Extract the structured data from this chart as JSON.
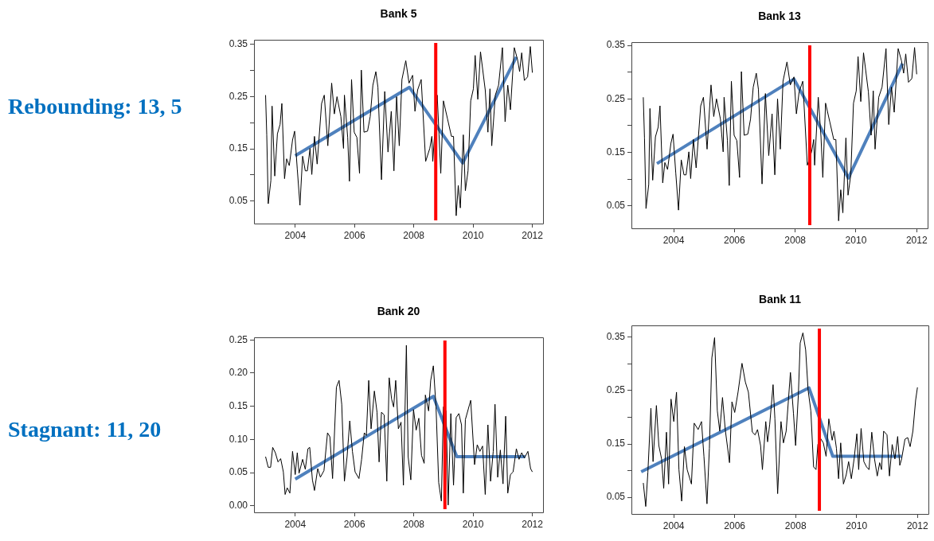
{
  "chart_data": [
    {
      "type": "line",
      "title": "Bank 5",
      "annotations": [
        "Rebounding: 13, 5"
      ],
      "xlim": [
        2002.61,
        2012.36
      ],
      "xticks": [
        2004,
        2006,
        2008,
        2010,
        2012
      ],
      "ylim": [
        0.007,
        0.359
      ],
      "yticks": [
        0.05,
        {
          "value": 0.1,
          "label": null
        },
        0.15,
        {
          "value": 0.2,
          "label": null
        },
        0.25,
        {
          "value": 0.3,
          "label": null
        },
        0.35
      ],
      "grid": false,
      "legend": false,
      "marker": "none",
      "series": [
        {
          "color": "#000000",
          "x": [
            2003.0,
            2003.04,
            2003.09,
            2003.18,
            2003.22,
            2003.31,
            2003.4,
            2003.49,
            2003.55,
            2003.64,
            2003.71,
            2003.8,
            2003.91,
            2003.98,
            2004.07,
            2004.16,
            2004.25,
            2004.34,
            2004.41,
            2004.5,
            2004.56,
            2004.65,
            2004.74,
            2004.89,
            2004.98,
            2005.1,
            2005.23,
            2005.32,
            2005.41,
            2005.54,
            2005.63,
            2005.66,
            2005.77,
            2005.83,
            2005.9,
            2005.99,
            2006.08,
            2006.17,
            2006.23,
            2006.32,
            2006.44,
            2006.53,
            2006.62,
            2006.72,
            2006.79,
            2006.91,
            2007.02,
            2007.13,
            2007.24,
            2007.33,
            2007.42,
            2007.51,
            2007.6,
            2007.73,
            2007.84,
            2007.96,
            2008.04,
            2008.13,
            2008.25,
            2008.4,
            2008.54,
            2008.61,
            2008.64,
            2008.79,
            2008.85,
            2008.91,
            2009.0,
            2009.14,
            2009.27,
            2009.34,
            2009.43,
            2009.5,
            2009.57,
            2009.67,
            2009.74,
            2009.83,
            2009.92,
            2010.01,
            2010.07,
            2010.16,
            2010.25,
            2010.41,
            2010.5,
            2010.57,
            2010.63,
            2010.75,
            2010.86,
            2010.99,
            2011.08,
            2011.17,
            2011.26,
            2011.39,
            2011.5,
            2011.57,
            2011.64,
            2011.73,
            2011.84,
            2011.93,
            2012.0
          ],
          "values": [
            0.253,
            0.177,
            0.045,
            0.09,
            0.232,
            0.098,
            0.179,
            0.197,
            0.237,
            0.093,
            0.131,
            0.118,
            0.167,
            0.184,
            0.111,
            0.042,
            0.136,
            0.108,
            0.108,
            0.151,
            0.101,
            0.174,
            0.121,
            0.237,
            0.253,
            0.156,
            0.276,
            0.217,
            0.25,
            0.212,
            0.151,
            0.253,
            0.172,
            0.088,
            0.283,
            0.182,
            0.172,
            0.103,
            0.301,
            0.182,
            0.184,
            0.212,
            0.272,
            0.298,
            0.268,
            0.091,
            0.26,
            0.144,
            0.222,
            0.108,
            0.25,
            0.156,
            0.283,
            0.319,
            0.276,
            0.291,
            0.222,
            0.263,
            0.283,
            0.126,
            0.151,
            0.174,
            0.126,
            0.253,
            0.179,
            0.103,
            0.242,
            0.207,
            0.174,
            0.174,
            0.022,
            0.08,
            0.037,
            0.177,
            0.07,
            0.108,
            0.242,
            0.265,
            0.329,
            0.245,
            0.336,
            0.263,
            0.182,
            0.265,
            0.156,
            0.253,
            0.272,
            0.344,
            0.202,
            0.272,
            0.225,
            0.344,
            0.321,
            0.298,
            0.334,
            0.281,
            0.288,
            0.346,
            0.296
          ]
        },
        {
          "color": "#4f81bd",
          "x": [
            2004.0,
            2007.85,
            2009.65,
            2011.46
          ],
          "values": [
            0.137,
            0.268,
            0.123,
            0.326
          ]
        }
      ],
      "ref_lines": [
        {
          "axis": "x",
          "value": 2008.74,
          "color": "#ff0000"
        }
      ]
    },
    {
      "type": "line",
      "title": "Bank 13",
      "xlim": [
        2002.61,
        2012.36
      ],
      "xticks": [
        2004,
        2006,
        2008,
        2010,
        2012
      ],
      "ylim": [
        0.008,
        0.356
      ],
      "yticks": [
        0.05,
        {
          "value": 0.1,
          "label": null
        },
        0.15,
        {
          "value": 0.2,
          "label": null
        },
        0.25,
        {
          "value": 0.3,
          "label": null
        },
        0.35
      ],
      "grid": false,
      "legend": false,
      "marker": "none",
      "series": [
        {
          "color": "#000000",
          "x": [
            2003.0,
            2003.04,
            2003.09,
            2003.18,
            2003.22,
            2003.31,
            2003.4,
            2003.49,
            2003.55,
            2003.64,
            2003.71,
            2003.8,
            2003.91,
            2003.98,
            2004.07,
            2004.16,
            2004.25,
            2004.34,
            2004.41,
            2004.5,
            2004.56,
            2004.65,
            2004.74,
            2004.89,
            2004.98,
            2005.1,
            2005.23,
            2005.32,
            2005.41,
            2005.54,
            2005.63,
            2005.66,
            2005.77,
            2005.83,
            2005.9,
            2005.99,
            2006.08,
            2006.17,
            2006.23,
            2006.32,
            2006.44,
            2006.53,
            2006.62,
            2006.72,
            2006.79,
            2006.91,
            2007.02,
            2007.13,
            2007.24,
            2007.33,
            2007.42,
            2007.51,
            2007.6,
            2007.73,
            2007.84,
            2007.96,
            2008.04,
            2008.13,
            2008.25,
            2008.4,
            2008.54,
            2008.61,
            2008.64,
            2008.76,
            2008.85,
            2008.91,
            2009.0,
            2009.14,
            2009.27,
            2009.34,
            2009.43,
            2009.5,
            2009.57,
            2009.67,
            2009.74,
            2009.83,
            2009.92,
            2010.01,
            2010.07,
            2010.16,
            2010.25,
            2010.41,
            2010.5,
            2010.57,
            2010.63,
            2010.75,
            2010.86,
            2010.99,
            2011.08,
            2011.17,
            2011.26,
            2011.39,
            2011.5,
            2011.57,
            2011.64,
            2011.73,
            2011.84,
            2011.93,
            2012.0
          ],
          "values": [
            0.253,
            0.177,
            0.045,
            0.09,
            0.232,
            0.098,
            0.179,
            0.197,
            0.237,
            0.093,
            0.131,
            0.118,
            0.167,
            0.184,
            0.111,
            0.042,
            0.136,
            0.108,
            0.108,
            0.151,
            0.101,
            0.174,
            0.121,
            0.237,
            0.253,
            0.156,
            0.276,
            0.217,
            0.25,
            0.212,
            0.151,
            0.253,
            0.172,
            0.088,
            0.283,
            0.182,
            0.172,
            0.103,
            0.301,
            0.182,
            0.184,
            0.212,
            0.272,
            0.298,
            0.268,
            0.091,
            0.26,
            0.144,
            0.222,
            0.108,
            0.25,
            0.156,
            0.283,
            0.319,
            0.276,
            0.291,
            0.222,
            0.263,
            0.283,
            0.126,
            0.151,
            0.174,
            0.126,
            0.253,
            0.179,
            0.103,
            0.242,
            0.207,
            0.174,
            0.174,
            0.022,
            0.08,
            0.037,
            0.177,
            0.07,
            0.108,
            0.242,
            0.265,
            0.329,
            0.245,
            0.336,
            0.263,
            0.182,
            0.265,
            0.156,
            0.253,
            0.272,
            0.344,
            0.202,
            0.272,
            0.225,
            0.344,
            0.321,
            0.298,
            0.334,
            0.281,
            0.288,
            0.346,
            0.296
          ]
        },
        {
          "color": "#4f81bd",
          "x": [
            2003.45,
            2007.96,
            2009.75,
            2011.53
          ],
          "values": [
            0.129,
            0.287,
            0.102,
            0.316
          ]
        }
      ],
      "ref_lines": [
        {
          "axis": "x",
          "value": 2008.48,
          "color": "#ff0000"
        }
      ]
    },
    {
      "type": "line",
      "title": "Bank 20",
      "annotations": [
        "Stagnant: 11, 20"
      ],
      "xlim": [
        2002.61,
        2012.36
      ],
      "xticks": [
        2004,
        2006,
        2008,
        2010,
        2012
      ],
      "ylim": [
        -0.01,
        0.254
      ],
      "yticks": [
        {
          "value": 0,
          "label": "0.00"
        },
        0.05,
        {
          "value": 0.1,
          "label": "0.10"
        },
        0.15,
        {
          "value": 0.2,
          "label": "0.20"
        },
        0.25
      ],
      "grid": false,
      "legend": false,
      "marker": "none",
      "series": [
        {
          "color": "#000000",
          "x": [
            2003.0,
            2003.09,
            2003.17,
            2003.24,
            2003.33,
            2003.42,
            2003.51,
            2003.6,
            2003.66,
            2003.73,
            2003.82,
            2003.91,
            2004.0,
            2004.07,
            2004.13,
            2004.25,
            2004.34,
            2004.43,
            2004.49,
            2004.58,
            2004.65,
            2004.76,
            2004.85,
            2004.97,
            2005.09,
            2005.17,
            2005.26,
            2005.39,
            2005.48,
            2005.57,
            2005.66,
            2005.75,
            2005.84,
            2005.93,
            2006.02,
            2006.15,
            2006.24,
            2006.33,
            2006.4,
            2006.48,
            2006.56,
            2006.67,
            2006.76,
            2006.83,
            2006.91,
            2007.0,
            2007.09,
            2007.17,
            2007.25,
            2007.32,
            2007.39,
            2007.48,
            2007.57,
            2007.65,
            2007.75,
            2007.81,
            2007.9,
            2007.99,
            2008.08,
            2008.17,
            2008.26,
            2008.35,
            2008.39,
            2008.5,
            2008.57,
            2008.66,
            2008.75,
            2008.84,
            2008.93,
            2009.0,
            2009.09,
            2009.16,
            2009.25,
            2009.34,
            2009.43,
            2009.52,
            2009.61,
            2009.67,
            2009.74,
            2009.92,
            2010.05,
            2010.14,
            2010.23,
            2010.32,
            2010.41,
            2010.5,
            2010.59,
            2010.68,
            2010.74,
            2010.83,
            2010.92,
            2011.01,
            2011.1,
            2011.17,
            2011.26,
            2011.35,
            2011.46,
            2011.55,
            2011.64,
            2011.73,
            2011.85,
            2011.94,
            2012.0
          ],
          "values": [
            0.074,
            0.058,
            0.058,
            0.088,
            0.08,
            0.066,
            0.071,
            0.051,
            0.017,
            0.027,
            0.019,
            0.082,
            0.047,
            0.08,
            0.049,
            0.07,
            0.055,
            0.086,
            0.088,
            0.039,
            0.023,
            0.056,
            0.043,
            0.053,
            0.11,
            0.104,
            0.041,
            0.179,
            0.189,
            0.153,
            0.037,
            0.074,
            0.128,
            0.082,
            0.051,
            0.041,
            0.07,
            0.11,
            0.106,
            0.189,
            0.116,
            0.173,
            0.141,
            0.066,
            0.141,
            0.137,
            0.037,
            0.193,
            0.161,
            0.149,
            0.189,
            0.116,
            0.126,
            0.031,
            0.242,
            0.074,
            0.039,
            0.145,
            0.114,
            0.132,
            0.076,
            0.064,
            0.167,
            0.143,
            0.189,
            0.211,
            0.149,
            0.035,
            0.007,
            0.149,
            0.143,
            0.001,
            0.139,
            0.031,
            0.133,
            0.139,
            0.122,
            0.019,
            0.13,
            0.159,
            0.062,
            0.092,
            0.082,
            0.09,
            0.017,
            0.122,
            0.037,
            0.082,
            0.153,
            0.043,
            0.084,
            0.033,
            0.135,
            0.019,
            0.047,
            0.051,
            0.086,
            0.07,
            0.08,
            0.072,
            0.082,
            0.056,
            0.051
          ]
        },
        {
          "color": "#4f81bd",
          "x": [
            2004.0,
            2008.66,
            2009.45,
            2011.76
          ],
          "values": [
            0.04,
            0.165,
            0.074,
            0.074
          ]
        }
      ],
      "ref_lines": [
        {
          "axis": "x",
          "value": 2009.05,
          "color": "#ff0000"
        }
      ]
    },
    {
      "type": "line",
      "title": "Bank 11",
      "xlim": [
        2002.61,
        2012.36
      ],
      "xticks": [
        2004,
        2006,
        2008,
        2010,
        2012
      ],
      "ylim": [
        0.019,
        0.372
      ],
      "yticks": [
        0.05,
        {
          "value": 0.1,
          "label": null
        },
        0.15,
        {
          "value": 0.2,
          "label": null
        },
        0.25,
        {
          "value": 0.3,
          "label": null
        },
        0.35
      ],
      "grid": false,
      "legend": false,
      "marker": "none",
      "series": [
        {
          "color": "#000000",
          "x": [
            2003.0,
            2003.08,
            2003.15,
            2003.25,
            2003.32,
            2003.43,
            2003.51,
            2003.6,
            2003.67,
            2003.76,
            2003.83,
            2003.91,
            2004.0,
            2004.09,
            2004.17,
            2004.26,
            2004.35,
            2004.44,
            2004.58,
            2004.67,
            2004.8,
            2004.91,
            2004.99,
            2005.09,
            2005.17,
            2005.25,
            2005.34,
            2005.43,
            2005.51,
            2005.6,
            2005.69,
            2005.83,
            2005.91,
            2006.0,
            2006.11,
            2006.24,
            2006.35,
            2006.45,
            2006.58,
            2006.67,
            2006.75,
            2006.85,
            2006.91,
            2007.02,
            2007.08,
            2007.15,
            2007.26,
            2007.32,
            2007.41,
            2007.52,
            2007.6,
            2007.69,
            2007.83,
            2007.93,
            2008.0,
            2008.09,
            2008.15,
            2008.24,
            2008.33,
            2008.41,
            2008.5,
            2008.59,
            2008.67,
            2008.73,
            2008.8,
            2008.91,
            2009.0,
            2009.09,
            2009.2,
            2009.26,
            2009.34,
            2009.41,
            2009.48,
            2009.57,
            2009.66,
            2009.74,
            2009.83,
            2009.92,
            2010.01,
            2010.07,
            2010.15,
            2010.24,
            2010.33,
            2010.41,
            2010.5,
            2010.59,
            2010.68,
            2010.76,
            2010.82,
            2010.89,
            2011.0,
            2011.08,
            2011.17,
            2011.26,
            2011.35,
            2011.42,
            2011.48,
            2011.59,
            2011.68,
            2011.76,
            2011.85,
            2011.94,
            2012.0
          ],
          "values": [
            0.077,
            0.033,
            0.097,
            0.217,
            0.117,
            0.222,
            0.147,
            0.122,
            0.067,
            0.172,
            0.075,
            0.234,
            0.192,
            0.247,
            0.102,
            0.043,
            0.145,
            0.102,
            0.075,
            0.189,
            0.177,
            0.192,
            0.127,
            0.038,
            0.142,
            0.311,
            0.349,
            0.212,
            0.174,
            0.237,
            0.177,
            0.115,
            0.229,
            0.209,
            0.247,
            0.301,
            0.266,
            0.247,
            0.172,
            0.167,
            0.177,
            0.147,
            0.102,
            0.192,
            0.154,
            0.187,
            0.261,
            0.197,
            0.057,
            0.192,
            0.152,
            0.174,
            0.284,
            0.207,
            0.147,
            0.242,
            0.339,
            0.358,
            0.326,
            0.251,
            0.212,
            0.107,
            0.102,
            0.149,
            0.162,
            0.152,
            0.127,
            0.197,
            0.157,
            0.174,
            0.142,
            0.085,
            0.152,
            0.075,
            0.092,
            0.117,
            0.085,
            0.122,
            0.169,
            0.102,
            0.179,
            0.117,
            0.107,
            0.102,
            0.172,
            0.122,
            0.09,
            0.115,
            0.102,
            0.174,
            0.167,
            0.09,
            0.149,
            0.122,
            0.164,
            0.11,
            0.122,
            0.159,
            0.162,
            0.145,
            0.174,
            0.232,
            0.256
          ]
        },
        {
          "color": "#4f81bd",
          "x": [
            2002.93,
            2008.44,
            2009.22,
            2011.48
          ],
          "values": [
            0.098,
            0.255,
            0.127,
            0.127
          ]
        }
      ],
      "ref_lines": [
        {
          "axis": "x",
          "value": 2008.78,
          "color": "#ff0000"
        }
      ]
    }
  ]
}
